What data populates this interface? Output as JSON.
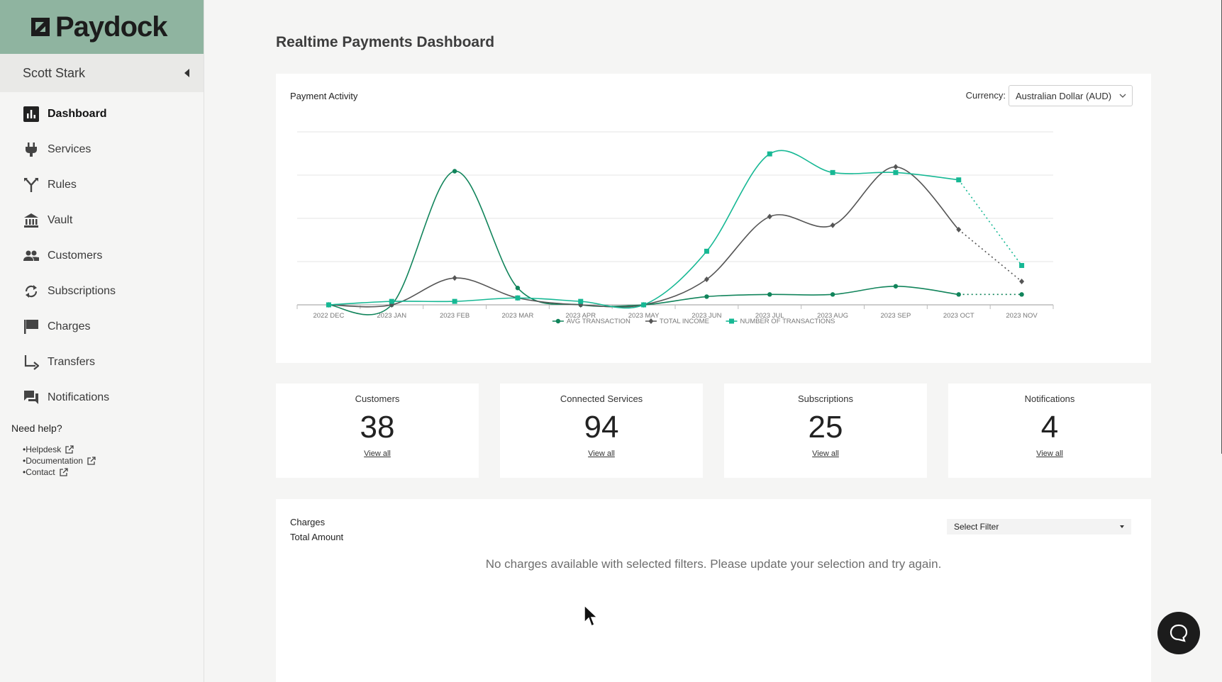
{
  "brand": {
    "name": "Paydock"
  },
  "user": {
    "name": "Scott Stark"
  },
  "sidebar": {
    "items": [
      {
        "label": "Dashboard",
        "icon": "bar-chart-icon",
        "active": true
      },
      {
        "label": "Services",
        "icon": "plug-icon"
      },
      {
        "label": "Rules",
        "icon": "fork-icon"
      },
      {
        "label": "Vault",
        "icon": "bank-icon"
      },
      {
        "label": "Customers",
        "icon": "people-icon"
      },
      {
        "label": "Subscriptions",
        "icon": "refresh-icon"
      },
      {
        "label": "Charges",
        "icon": "flag-icon"
      },
      {
        "label": "Transfers",
        "icon": "transfer-arrow-icon"
      },
      {
        "label": "Notifications",
        "icon": "chat-bubbles-icon"
      }
    ],
    "help": {
      "title": "Need help?",
      "links": [
        "Helpdesk",
        "Documentation",
        "Contact"
      ]
    }
  },
  "page": {
    "title": "Realtime Payments Dashboard"
  },
  "payment_activity": {
    "title": "Payment Activity",
    "currency_label": "Currency:",
    "currency_value": "Australian Dollar (AUD)"
  },
  "chart_data": {
    "type": "line",
    "title": "Payment Activity",
    "categories": [
      "2022 DEC",
      "2023 JAN",
      "2023 FEB",
      "2023 MAR",
      "2023 APR",
      "2023 MAY",
      "2023 JUN",
      "2023 JUL",
      "2023 AUG",
      "2023 SEP",
      "2023 OCT",
      "2023 NOV"
    ],
    "ylim": [
      0,
      4
    ],
    "grid": true,
    "legend": "bottom-center",
    "projected_from_index": 10,
    "series": [
      {
        "name": "AVG TRANSACTION",
        "color": "#11845b",
        "marker": "circle",
        "values": [
          0,
          0,
          3.09,
          0.39,
          0,
          0,
          0.19,
          0.24,
          0.24,
          0.43,
          0.24,
          0.24
        ]
      },
      {
        "name": "TOTAL INCOME",
        "color": "#555555",
        "marker": "diamond",
        "values": [
          0,
          0,
          0.62,
          0.16,
          0,
          0,
          0.59,
          2.04,
          1.84,
          3.19,
          1.74,
          0.54
        ]
      },
      {
        "name": "NUMBER OF TRANSACTIONS",
        "color": "#16b894",
        "marker": "square",
        "values": [
          0,
          0.08,
          0.08,
          0.16,
          0.08,
          0,
          1.24,
          3.49,
          3.06,
          3.06,
          2.89,
          0.91
        ]
      }
    ]
  },
  "stats": [
    {
      "title": "Customers",
      "value": "38",
      "link": "View all"
    },
    {
      "title": "Connected Services",
      "value": "94",
      "link": "View all"
    },
    {
      "title": "Subscriptions",
      "value": "25",
      "link": "View all"
    },
    {
      "title": "Notifications",
      "value": "4",
      "link": "View all"
    }
  ],
  "charges": {
    "title": "Charges",
    "subtitle": "Total Amount",
    "filter_placeholder": "Select Filter",
    "empty_message": "No charges available with selected filters. Please update your selection and try again."
  },
  "colors": {
    "logo_bg": "#8fb4a0",
    "accent": "#16b894",
    "dark_green": "#11845b"
  }
}
